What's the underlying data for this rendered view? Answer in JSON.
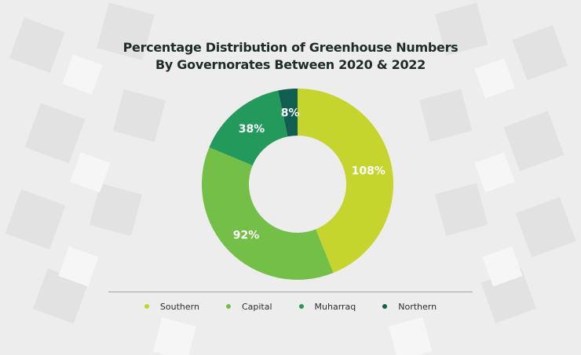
{
  "title": {
    "line1": "Percentage Distribution of Greenhouse Numbers",
    "line2": "By Governorates Between 2020 & 2022"
  },
  "chart_data": {
    "type": "pie",
    "variant": "donut",
    "title": "Percentage Distribution of Greenhouse Numbers By Governorates Between 2020 & 2022",
    "categories": [
      "Southern",
      "Capital",
      "Muharraq",
      "Northern"
    ],
    "values": [
      108,
      92,
      38,
      8
    ],
    "labels": [
      "108%",
      "92%",
      "38%",
      "8%"
    ],
    "colors": [
      "#c5d52e",
      "#74bf47",
      "#23995b",
      "#0f5e50"
    ],
    "legend_position": "bottom"
  }
}
